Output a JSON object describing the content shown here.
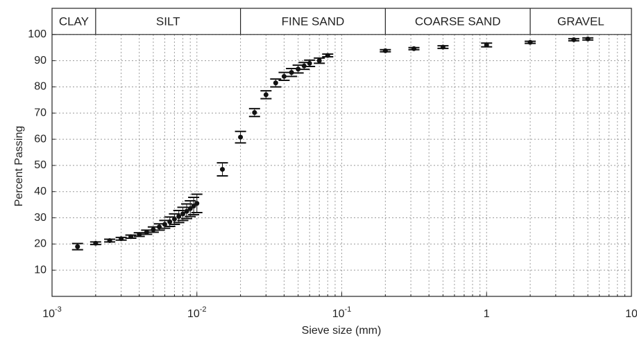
{
  "chart_data": {
    "type": "scatter",
    "x_label": "Sieve size (mm)",
    "y_label": "Percent Passing",
    "log_x": true,
    "grid": true,
    "color": "#111111",
    "xlim": [
      0.001,
      10
    ],
    "ylim": [
      0,
      110
    ],
    "xticks": [
      {
        "value": 0.001,
        "label": "10",
        "exponent": "-3"
      },
      {
        "value": 0.01,
        "label": "10",
        "exponent": "-2"
      },
      {
        "value": 0.1,
        "label": "10",
        "exponent": "-1"
      },
      1,
      10
    ],
    "xticks_minor": [
      0.002,
      0.003,
      0.004,
      0.005,
      0.006,
      0.007,
      0.008,
      0.009,
      0.02,
      0.03,
      0.04,
      0.05,
      0.06,
      0.07,
      0.08,
      0.09,
      0.2,
      0.3,
      0.4,
      0.5,
      0.6,
      0.7,
      0.8,
      0.9,
      2,
      3,
      4,
      5,
      6,
      7,
      8,
      9
    ],
    "yticks": [
      10,
      20,
      30,
      40,
      50,
      60,
      70,
      80,
      90,
      100
    ],
    "soil_classes": {
      "names": [
        "CLAY",
        "SILT",
        "FINE SAND",
        "COARSE SAND",
        "GRAVEL"
      ],
      "boundaries": [
        0.002,
        0.02,
        0.2,
        2
      ]
    },
    "x": [
      0.0015,
      0.002,
      0.0025,
      0.003,
      0.0035,
      0.004,
      0.0045,
      0.005,
      0.0055,
      0.006,
      0.0065,
      0.007,
      0.0075,
      0.008,
      0.0085,
      0.009,
      0.0095,
      0.01,
      0.015,
      0.02,
      0.025,
      0.03,
      0.035,
      0.04,
      0.045,
      0.05,
      0.055,
      0.06,
      0.07,
      0.08,
      0.2,
      0.315,
      0.5,
      1,
      2,
      4,
      5
    ],
    "values": [
      19,
      20.3,
      21.3,
      22,
      22.8,
      23.6,
      24.5,
      25.5,
      26.5,
      27.5,
      28.5,
      29.5,
      30.5,
      31.5,
      32.5,
      33.5,
      34.5,
      35.5,
      48.5,
      60.8,
      70.2,
      77,
      81.5,
      84,
      85.5,
      86.8,
      88,
      89,
      90,
      92,
      93.8,
      94.6,
      95.2,
      96,
      97,
      98,
      98.3
    ],
    "errors": [
      1.2,
      0.5,
      0.5,
      0.5,
      0.6,
      0.7,
      0.8,
      1,
      1.2,
      1.5,
      1.8,
      2,
      2.3,
      2.5,
      2.8,
      3,
      3.3,
      3.5,
      2.5,
      2.2,
      1.5,
      1.5,
      1.5,
      1.5,
      1.5,
      1.5,
      1.3,
      1.2,
      1,
      0.5,
      0.4,
      0.4,
      0.5,
      0.7,
      0.4,
      0.4,
      0.4
    ]
  }
}
